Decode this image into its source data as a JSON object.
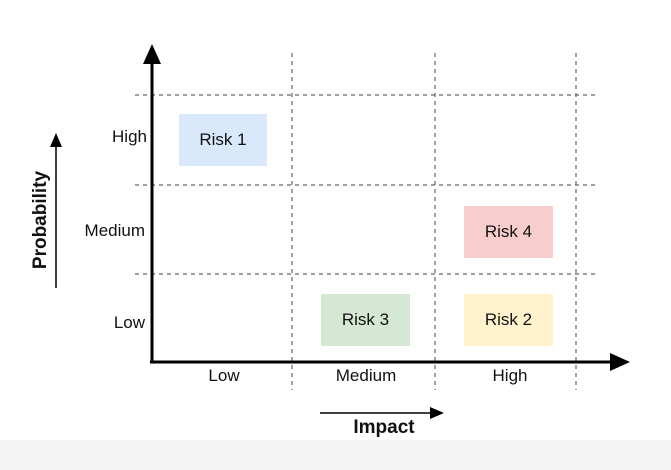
{
  "x_axis": {
    "title": "Impact",
    "levels": [
      "Low",
      "Medium",
      "High"
    ]
  },
  "y_axis": {
    "title": "Probability",
    "levels": [
      "High",
      "Medium",
      "Low"
    ]
  },
  "risks": [
    {
      "label": "Risk 1",
      "impact": "Low",
      "probability": "High",
      "color": "#dae8fc"
    },
    {
      "label": "Risk 4",
      "impact": "High",
      "probability": "Medium",
      "color": "#f8cecc"
    },
    {
      "label": "Risk 3",
      "impact": "Medium",
      "probability": "Low",
      "color": "#d5e8d4"
    },
    {
      "label": "Risk 2",
      "impact": "High",
      "probability": "Low",
      "color": "#fff2cc"
    }
  ],
  "colors": {
    "axis": "#000000",
    "grid": "#666666"
  }
}
